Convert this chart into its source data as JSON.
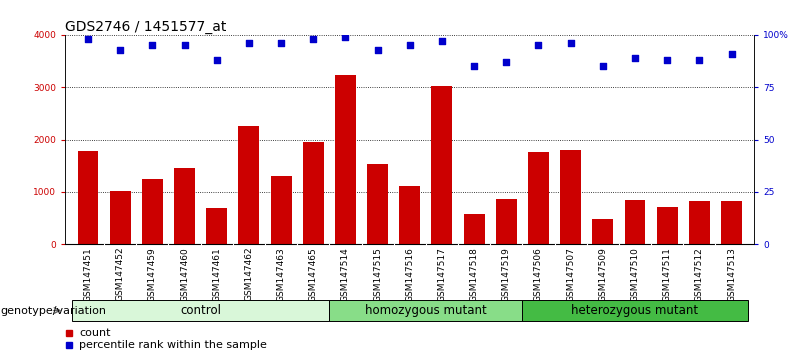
{
  "title": "GDS2746 / 1451577_at",
  "samples": [
    "GSM147451",
    "GSM147452",
    "GSM147459",
    "GSM147460",
    "GSM147461",
    "GSM147462",
    "GSM147463",
    "GSM147465",
    "GSM147514",
    "GSM147515",
    "GSM147516",
    "GSM147517",
    "GSM147518",
    "GSM147519",
    "GSM147506",
    "GSM147507",
    "GSM147509",
    "GSM147510",
    "GSM147511",
    "GSM147512",
    "GSM147513"
  ],
  "counts": [
    1780,
    1020,
    1240,
    1450,
    680,
    2250,
    1310,
    1960,
    3230,
    1530,
    1110,
    3020,
    570,
    860,
    1760,
    1800,
    480,
    840,
    710,
    830,
    820
  ],
  "percentile": [
    98,
    93,
    95,
    95,
    88,
    96,
    96,
    98,
    99,
    93,
    95,
    97,
    85,
    87,
    95,
    96,
    85,
    89,
    88,
    88,
    91
  ],
  "groups": [
    {
      "label": "control",
      "start": 0,
      "end": 8,
      "color": "#d9f7d9"
    },
    {
      "label": "homozygous mutant",
      "start": 8,
      "end": 14,
      "color": "#88dd88"
    },
    {
      "label": "heterozygous mutant",
      "start": 14,
      "end": 21,
      "color": "#44bb44"
    }
  ],
  "bar_color": "#cc0000",
  "dot_color": "#0000cc",
  "left_axis_color": "#cc0000",
  "right_axis_color": "#0000cc",
  "ylim_left": [
    0,
    4000
  ],
  "ylim_right": [
    0,
    100
  ],
  "yticks_left": [
    0,
    1000,
    2000,
    3000,
    4000
  ],
  "ytick_labels_right": [
    "0",
    "25",
    "50",
    "75",
    "100%"
  ],
  "yticks_right": [
    0,
    25,
    50,
    75,
    100
  ],
  "bg_color": "#ffffff",
  "xtick_bg_color": "#cccccc",
  "genotype_label": "genotype/variation",
  "legend_count_label": "count",
  "legend_pct_label": "percentile rank within the sample",
  "title_fontsize": 10,
  "tick_fontsize": 6.5,
  "group_fontsize": 8.5,
  "genotype_fontsize": 8
}
